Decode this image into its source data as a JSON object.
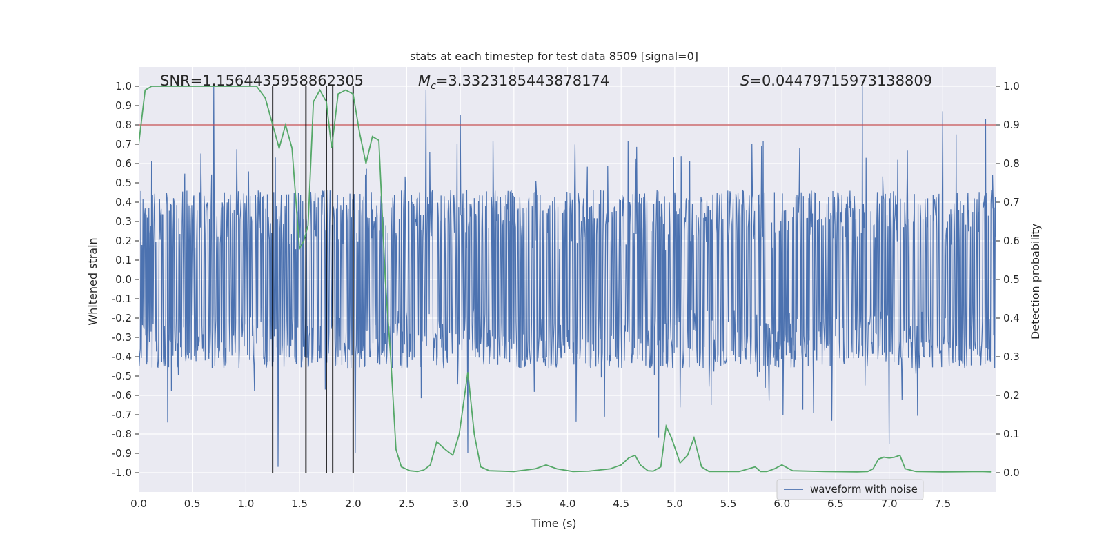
{
  "chart_data": {
    "type": "line",
    "title": "stats at each timestep for test data 8509 [signal=0]",
    "xlabel": "Time (s)",
    "ylabel": "Whitened strain",
    "y2label": "Detection probability",
    "xlim": [
      0.0,
      8.0
    ],
    "ylim": [
      -1.1,
      1.1
    ],
    "y2lim": [
      -0.05,
      1.05
    ],
    "xticks": [
      "0.0",
      "0.5",
      "1.0",
      "1.5",
      "2.0",
      "2.5",
      "3.0",
      "3.5",
      "4.0",
      "4.5",
      "5.0",
      "5.5",
      "6.0",
      "6.5",
      "7.0",
      "7.5"
    ],
    "yticks": [
      "1.0",
      "0.9",
      "0.8",
      "0.7",
      "0.6",
      "0.5",
      "0.4",
      "0.3",
      "0.2",
      "0.1",
      "0.0",
      "-0.1",
      "-0.2",
      "-0.3",
      "-0.4",
      "-0.5",
      "-0.6",
      "-0.7",
      "-0.8",
      "-0.9",
      "-1.0"
    ],
    "y2ticks": [
      "1.0",
      "0.9",
      "0.8",
      "0.7",
      "0.6",
      "0.5",
      "0.4",
      "0.3",
      "0.2",
      "0.1",
      "0.0"
    ],
    "grid": true,
    "legend": {
      "label": "waveform with noise",
      "position": "lower-right"
    },
    "annotations": {
      "snr": "SNR=1.1564435958862305",
      "mc_symbol": "M",
      "mc_sub": "c",
      "mc_value": "=3.3323185443878174",
      "s_symbol": "S",
      "s_value": "=0.04479715973138809"
    },
    "threshold": 0.9,
    "vertical_markers": [
      1.25,
      1.56,
      1.75,
      1.81,
      2.0
    ],
    "waveform": {
      "name": "waveform with noise",
      "sample_count": 1600,
      "typical_amplitude": 0.42,
      "spikes": [
        {
          "x": 0.7,
          "y": 1.0
        },
        {
          "x": 2.68,
          "y": 0.98
        },
        {
          "x": 3.0,
          "y": 0.85
        },
        {
          "x": 6.75,
          "y": 1.0
        },
        {
          "x": 7.5,
          "y": 0.87
        },
        {
          "x": 7.9,
          "y": 0.83
        },
        {
          "x": 1.3,
          "y": -0.97
        },
        {
          "x": 2.02,
          "y": -0.9
        },
        {
          "x": 3.07,
          "y": -0.9
        },
        {
          "x": 7.0,
          "y": -0.85
        },
        {
          "x": 4.85,
          "y": -0.82
        },
        {
          "x": 0.27,
          "y": -0.74
        }
      ]
    },
    "detection_probability": {
      "name": "detection probability",
      "x": [
        0.0,
        0.06,
        0.12,
        0.3,
        0.6,
        0.9,
        1.1,
        1.18,
        1.25,
        1.31,
        1.37,
        1.43,
        1.5,
        1.54,
        1.58,
        1.63,
        1.69,
        1.75,
        1.8,
        1.86,
        1.93,
        2.0,
        2.06,
        2.12,
        2.18,
        2.24,
        2.3,
        2.35,
        2.4,
        2.45,
        2.53,
        2.6,
        2.66,
        2.72,
        2.78,
        2.86,
        2.93,
        2.99,
        3.07,
        3.13,
        3.19,
        3.27,
        3.5,
        3.7,
        3.8,
        3.9,
        4.05,
        4.2,
        4.4,
        4.5,
        4.57,
        4.63,
        4.68,
        4.75,
        4.8,
        4.87,
        4.92,
        4.97,
        5.05,
        5.12,
        5.18,
        5.25,
        5.32,
        5.45,
        5.6,
        5.75,
        5.8,
        5.86,
        5.93,
        6.0,
        6.1,
        6.4,
        6.7,
        6.8,
        6.85,
        6.9,
        6.95,
        7.0,
        7.05,
        7.1,
        7.15,
        7.25,
        7.5,
        7.85,
        7.95
      ],
      "y": [
        0.85,
        0.99,
        1.0,
        1.0,
        1.0,
        1.0,
        1.0,
        0.97,
        0.9,
        0.84,
        0.9,
        0.84,
        0.58,
        0.6,
        0.64,
        0.96,
        0.99,
        0.96,
        0.84,
        0.98,
        0.99,
        0.98,
        0.88,
        0.8,
        0.87,
        0.86,
        0.5,
        0.3,
        0.06,
        0.015,
        0.005,
        0.003,
        0.007,
        0.02,
        0.08,
        0.06,
        0.045,
        0.1,
        0.26,
        0.1,
        0.015,
        0.005,
        0.003,
        0.01,
        0.02,
        0.01,
        0.003,
        0.004,
        0.01,
        0.02,
        0.038,
        0.045,
        0.02,
        0.005,
        0.004,
        0.015,
        0.12,
        0.09,
        0.025,
        0.045,
        0.09,
        0.015,
        0.003,
        0.003,
        0.003,
        0.015,
        0.003,
        0.003,
        0.01,
        0.02,
        0.005,
        0.003,
        0.002,
        0.003,
        0.01,
        0.035,
        0.04,
        0.038,
        0.04,
        0.045,
        0.01,
        0.003,
        0.002,
        0.003,
        0.002
      ]
    },
    "colors": {
      "background": "#eaeaf2",
      "grid": "#ffffff",
      "waveform": "#4c72b0",
      "probability": "#55a868",
      "threshold": "#c44e52",
      "marker": "#000000"
    }
  }
}
